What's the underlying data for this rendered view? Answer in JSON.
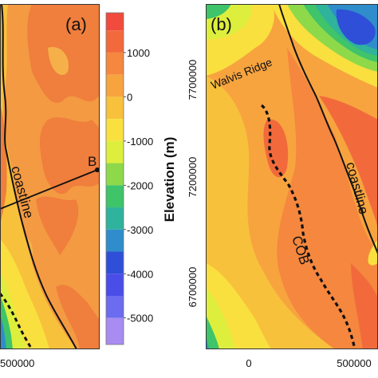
{
  "panel_a": {
    "label": "(a)",
    "coastline_label": "coastline",
    "profile_end_label": "B",
    "x_tick": "500000"
  },
  "panel_b": {
    "label": "(b)",
    "walvis_label": "Walvis Ridge",
    "coastline_label": "coastline",
    "cob_label": "COB",
    "y_ticks": [
      "7700000",
      "7200000",
      "6700000"
    ],
    "x_ticks": [
      "0",
      "500000"
    ]
  },
  "colorbar": {
    "title": "Elevation (m)",
    "tick_labels": [
      "1000",
      "0",
      "-1000",
      "-2000",
      "-3000",
      "-4000",
      "-5000"
    ],
    "tick_values": [
      1000,
      0,
      -1000,
      -2000,
      -3000,
      -4000,
      -5000
    ],
    "range": [
      -5600,
      1900
    ],
    "colors": [
      {
        "from": 1500,
        "to": 1900,
        "hex": "#f04b3c"
      },
      {
        "from": 1000,
        "to": 1500,
        "hex": "#f26a3c"
      },
      {
        "from": 500,
        "to": 1000,
        "hex": "#f5873e"
      },
      {
        "from": 0,
        "to": 500,
        "hex": "#f7a43f"
      },
      {
        "from": -500,
        "to": 0,
        "hex": "#f8c13c"
      },
      {
        "from": -1000,
        "to": -500,
        "hex": "#f9e03e"
      },
      {
        "from": -1500,
        "to": -1000,
        "hex": "#ddef3c"
      },
      {
        "from": -2000,
        "to": -1500,
        "hex": "#8ed94a"
      },
      {
        "from": -2500,
        "to": -2000,
        "hex": "#3fc46a"
      },
      {
        "from": -3000,
        "to": -2500,
        "hex": "#2fb39c"
      },
      {
        "from": -3500,
        "to": -3000,
        "hex": "#2f8dcb"
      },
      {
        "from": -4000,
        "to": -3500,
        "hex": "#2f4fd8"
      },
      {
        "from": -4500,
        "to": -4000,
        "hex": "#4a4de8"
      },
      {
        "from": -5000,
        "to": -4500,
        "hex": "#6b6cf0"
      },
      {
        "from": -5600,
        "to": -5000,
        "hex": "#a88cf2"
      }
    ]
  }
}
